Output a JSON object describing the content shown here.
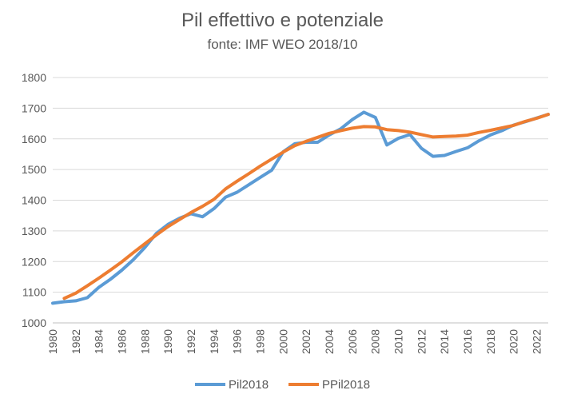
{
  "chart_data": {
    "type": "line",
    "title": "Pil effettivo e potenziale",
    "subtitle": "fonte: IMF WEO 2018/10",
    "xlabel": "",
    "ylabel": "",
    "ylim": [
      1000,
      1800
    ],
    "yticks": [
      1000,
      1100,
      1200,
      1300,
      1400,
      1500,
      1600,
      1700,
      1800
    ],
    "xlim": [
      1980,
      2023
    ],
    "xticks": [
      1980,
      1982,
      1984,
      1986,
      1988,
      1990,
      1992,
      1994,
      1996,
      1998,
      2000,
      2002,
      2004,
      2006,
      2008,
      2010,
      2012,
      2014,
      2016,
      2018,
      2020,
      2022
    ],
    "grid": "horizontal",
    "legend": "bottom",
    "series": [
      {
        "name": "Pil2018",
        "color": "#5B9BD5",
        "x": [
          1980,
          1981,
          1982,
          1983,
          1984,
          1985,
          1986,
          1987,
          1988,
          1989,
          1990,
          1991,
          1992,
          1993,
          1994,
          1995,
          1996,
          1997,
          1998,
          1999,
          2000,
          2001,
          2002,
          2003,
          2004,
          2005,
          2006,
          2007,
          2008,
          2009,
          2010,
          2011,
          2012,
          2013,
          2014,
          2015,
          2016,
          2017,
          2018,
          2019,
          2020,
          2021,
          2022,
          2023
        ],
        "values": [
          1064,
          1069,
          1072,
          1082,
          1116,
          1142,
          1172,
          1206,
          1246,
          1292,
          1321,
          1341,
          1356,
          1346,
          1373,
          1410,
          1426,
          1450,
          1474,
          1498,
          1558,
          1584,
          1589,
          1589,
          1613,
          1633,
          1663,
          1687,
          1670,
          1580,
          1602,
          1614,
          1569,
          1543,
          1546,
          1559,
          1571,
          1594,
          1613,
          1627,
          1645,
          1656,
          1668,
          1680
        ]
      },
      {
        "name": "PPil2018",
        "color": "#ED7D31",
        "x": [
          1981,
          1982,
          1983,
          1984,
          1985,
          1986,
          1987,
          1988,
          1989,
          1990,
          1991,
          1992,
          1993,
          1994,
          1995,
          1996,
          1997,
          1998,
          1999,
          2000,
          2001,
          2002,
          2003,
          2004,
          2005,
          2006,
          2007,
          2008,
          2009,
          2010,
          2011,
          2012,
          2013,
          2014,
          2015,
          2016,
          2017,
          2018,
          2019,
          2020,
          2021,
          2022,
          2023
        ],
        "values": [
          1080,
          1097,
          1121,
          1146,
          1172,
          1199,
          1229,
          1258,
          1287,
          1314,
          1337,
          1360,
          1380,
          1403,
          1437,
          1462,
          1486,
          1511,
          1534,
          1557,
          1578,
          1592,
          1605,
          1618,
          1627,
          1635,
          1640,
          1639,
          1630,
          1627,
          1622,
          1614,
          1606,
          1608,
          1609,
          1612,
          1621,
          1628,
          1636,
          1644,
          1657,
          1667,
          1680
        ]
      }
    ]
  }
}
